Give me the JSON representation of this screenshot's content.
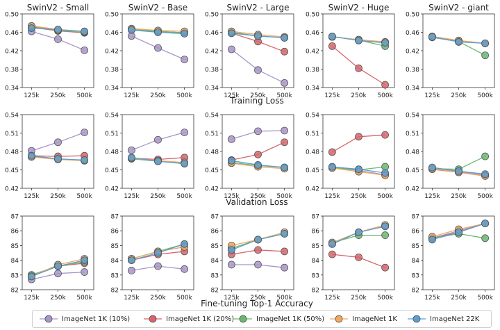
{
  "chart_data": {
    "type": "line",
    "categories": [
      "125k",
      "250k",
      "500k"
    ],
    "series_meta": [
      {
        "key": "in1k_10",
        "name": "ImageNet 1K (10%)",
        "color": "#a895c8"
      },
      {
        "key": "in1k_20",
        "name": "ImageNet 1K (20%)",
        "color": "#d8646a"
      },
      {
        "key": "in1k_50",
        "name": "ImageNet 1K (50%)",
        "color": "#6ab870"
      },
      {
        "key": "in1k",
        "name": "ImageNet 1K",
        "color": "#f0a860"
      },
      {
        "key": "in22k",
        "name": "ImageNet 22K",
        "color": "#5b9ed0"
      }
    ],
    "columns": [
      "SwinV2 - Small",
      "SwinV2 - Base",
      "SwinV2 - Large",
      "SwinV2 - Huge",
      "SwinV2 - giant"
    ],
    "rows": [
      {
        "label": "Training Loss",
        "ylim": [
          0.34,
          0.5
        ],
        "yticks": [
          "0.34",
          "0.38",
          "0.42",
          "0.46",
          "0.50"
        ],
        "data": [
          {
            "in1k_10": [
              0.462,
              0.445,
              0.421
            ],
            "in1k_20": [
              0.471,
              0.463,
              0.459
            ],
            "in1k_50": [
              0.473,
              0.464,
              0.46
            ],
            "in1k": [
              0.474,
              0.466,
              0.461
            ],
            "in22k": [
              0.469,
              0.466,
              0.462
            ]
          },
          {
            "in1k_10": [
              0.452,
              0.426,
              0.401
            ],
            "in1k_20": [
              0.466,
              0.462,
              0.459
            ],
            "in1k_50": [
              0.467,
              0.462,
              0.459
            ],
            "in1k": [
              0.468,
              0.464,
              0.462
            ],
            "in22k": [
              0.465,
              0.46,
              0.457
            ]
          },
          {
            "in1k_10": [
              0.423,
              0.378,
              0.35
            ],
            "in1k_20": [
              0.458,
              0.44,
              0.418
            ],
            "in1k_50": [
              0.46,
              0.452,
              0.448
            ],
            "in1k": [
              0.462,
              0.455,
              0.45
            ],
            "in22k": [
              0.458,
              0.452,
              0.448
            ]
          },
          {
            "in1k_10": [
              0.45,
              0.444,
              0.439
            ],
            "in1k_20": [
              0.43,
              0.382,
              0.346
            ],
            "in1k_50": [
              0.451,
              0.443,
              0.43
            ],
            "in1k": [
              0.45,
              0.444,
              0.439
            ],
            "in22k": [
              0.451,
              0.442,
              0.437
            ]
          },
          {
            "in1k_10": [
              0.451,
              0.442,
              0.436
            ],
            "in1k_20": [
              0.45,
              0.441,
              0.436
            ],
            "in1k_50": [
              0.449,
              0.44,
              0.41
            ],
            "in1k": [
              0.451,
              0.442,
              0.436
            ],
            "in22k": [
              0.45,
              0.439,
              0.436
            ]
          }
        ]
      },
      {
        "label": "Validation Loss",
        "ylim": [
          0.42,
          0.54
        ],
        "yticks": [
          "0.42",
          "0.45",
          "0.48",
          "0.51",
          "0.54"
        ],
        "data": [
          {
            "in1k_10": [
              0.481,
              0.495,
              0.511
            ],
            "in1k_20": [
              0.473,
              0.472,
              0.473
            ],
            "in1k_50": [
              0.472,
              0.468,
              0.465
            ],
            "in1k": [
              0.471,
              0.467,
              0.465
            ],
            "in22k": [
              0.473,
              0.468,
              0.466
            ]
          },
          {
            "in1k_10": [
              0.482,
              0.499,
              0.511
            ],
            "in1k_20": [
              0.469,
              0.467,
              0.47
            ],
            "in1k_50": [
              0.468,
              0.464,
              0.461
            ],
            "in1k": [
              0.469,
              0.465,
              0.462
            ],
            "in22k": [
              0.47,
              0.464,
              0.46
            ]
          },
          {
            "in1k_10": [
              0.5,
              0.513,
              0.514
            ],
            "in1k_20": [
              0.466,
              0.475,
              0.495
            ],
            "in1k_50": [
              0.462,
              0.457,
              0.454
            ],
            "in1k": [
              0.461,
              0.455,
              0.452
            ],
            "in22k": [
              0.465,
              0.458,
              0.454
            ]
          },
          {
            "in1k_10": [
              0.454,
              0.449,
              0.442
            ],
            "in1k_20": [
              0.479,
              0.504,
              0.507
            ],
            "in1k_50": [
              0.454,
              0.45,
              0.455
            ],
            "in1k": [
              0.453,
              0.447,
              0.441
            ],
            "in22k": [
              0.455,
              0.451,
              0.445
            ]
          },
          {
            "in1k_10": [
              0.452,
              0.447,
              0.441
            ],
            "in1k_20": [
              0.451,
              0.446,
              0.44
            ],
            "in1k_50": [
              0.452,
              0.451,
              0.472
            ],
            "in1k": [
              0.452,
              0.446,
              0.44
            ],
            "in22k": [
              0.454,
              0.448,
              0.443
            ]
          }
        ]
      },
      {
        "label": "Fine-tuning Top-1 Accuracy",
        "ylim": [
          82,
          87
        ],
        "yticks": [
          "82",
          "83",
          "84",
          "85",
          "86",
          "87"
        ],
        "data": [
          {
            "in1k_10": [
              82.7,
              83.1,
              83.2
            ],
            "in1k_20": [
              83.0,
              83.6,
              83.8
            ],
            "in1k_50": [
              83.0,
              83.6,
              83.9
            ],
            "in1k": [
              82.9,
              83.7,
              84.1
            ],
            "in22k": [
              82.9,
              83.6,
              84.0
            ]
          },
          {
            "in1k_10": [
              83.3,
              83.6,
              83.4
            ],
            "in1k_20": [
              84.0,
              84.4,
              84.6
            ],
            "in1k_50": [
              84.1,
              84.6,
              85.1
            ],
            "in1k": [
              84.1,
              84.6,
              84.9
            ],
            "in22k": [
              84.0,
              84.5,
              85.1
            ]
          },
          {
            "in1k_10": [
              83.7,
              83.7,
              83.5
            ],
            "in1k_20": [
              84.4,
              84.7,
              84.6
            ],
            "in1k_50": [
              84.8,
              85.4,
              85.8
            ],
            "in1k": [
              85.0,
              85.4,
              85.9
            ],
            "in22k": [
              84.7,
              85.4,
              85.8
            ]
          },
          {
            "in1k_10": [
              85.1,
              85.9,
              86.3
            ],
            "in1k_20": [
              84.4,
              84.2,
              83.5
            ],
            "in1k_50": [
              85.2,
              85.7,
              85.7
            ],
            "in1k": [
              85.2,
              85.9,
              86.4
            ],
            "in22k": [
              85.1,
              85.9,
              86.3
            ]
          },
          {
            "in1k_10": [
              85.5,
              86.0,
              86.5
            ],
            "in1k_20": [
              85.5,
              85.9,
              86.5
            ],
            "in1k_50": [
              85.5,
              85.8,
              85.5
            ],
            "in1k": [
              85.6,
              86.1,
              86.5
            ],
            "in22k": [
              85.4,
              85.9,
              86.5
            ]
          }
        ]
      }
    ]
  }
}
